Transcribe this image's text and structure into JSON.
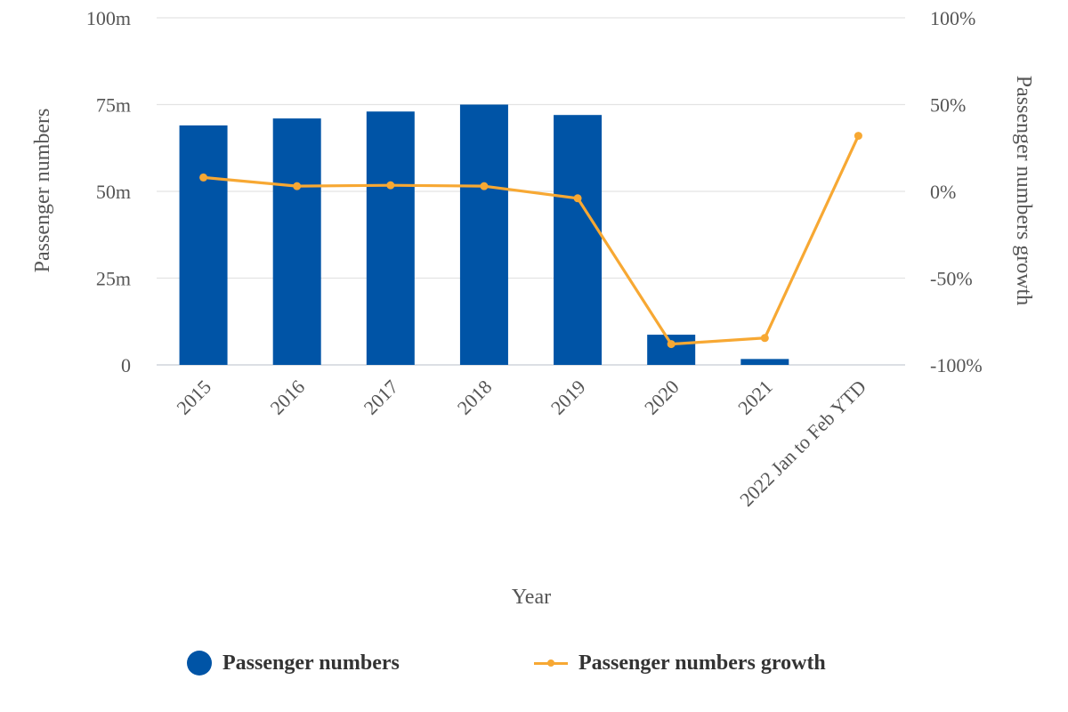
{
  "chart_data": {
    "type": "bar",
    "categories": [
      "2015",
      "2016",
      "2017",
      "2018",
      "2019",
      "2020",
      "2021",
      "2022 Jan to Feb YTD"
    ],
    "series": [
      {
        "name": "Passenger numbers",
        "type": "bar",
        "axis": "left",
        "color": "#0054A6",
        "values": [
          69,
          71,
          73,
          75,
          72,
          8.7,
          1.7,
          0
        ]
      },
      {
        "name": "Passenger numbers growth",
        "type": "line",
        "axis": "right",
        "color": "#F7A833",
        "values": [
          8,
          3,
          3.5,
          3,
          -4,
          -88,
          -84.5,
          32
        ]
      }
    ],
    "xlabel": "Year",
    "ylabel": "Passenger numbers",
    "y2label": "Passenger numbers growth",
    "ylim": [
      0,
      100
    ],
    "y2lim": [
      -100,
      100
    ],
    "yticks": [
      "0",
      "25m",
      "50m",
      "75m",
      "100m"
    ],
    "y2ticks": [
      "-100%",
      "-50%",
      "0%",
      "50%",
      "100%"
    ],
    "grid": true,
    "legend_position": "bottom"
  }
}
